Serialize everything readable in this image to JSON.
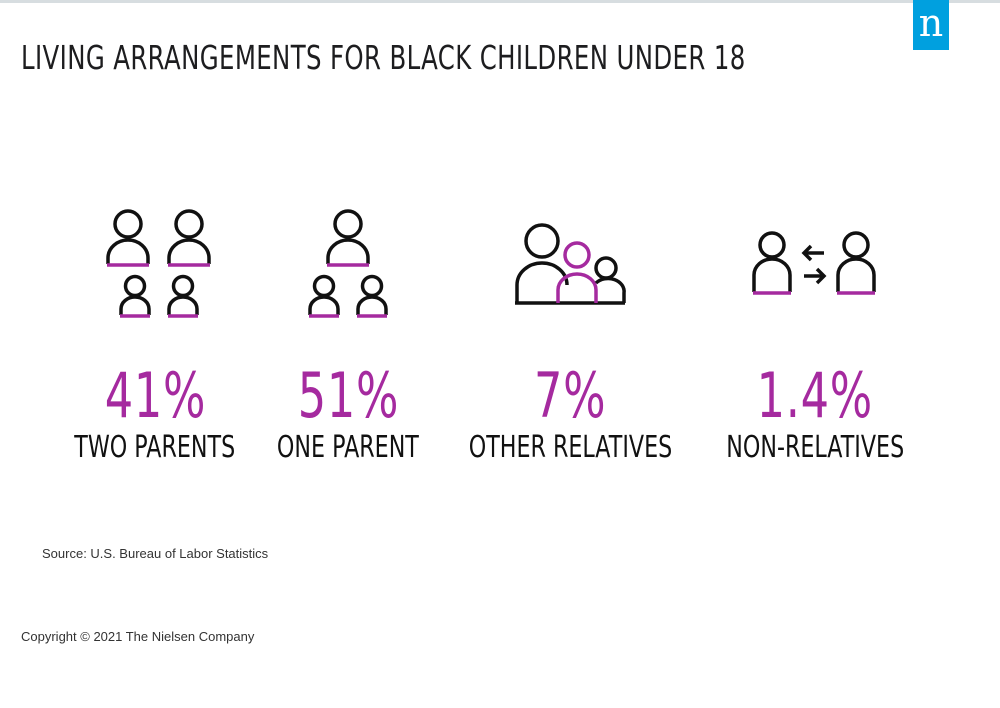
{
  "brand": {
    "logo_letter": "n",
    "logo_color": "#00a0df"
  },
  "title": "LIVING ARRANGEMENTS FOR BLACK CHILDREN UNDER 18",
  "colors": {
    "accent": "#a52a9f",
    "ink": "#111111"
  },
  "stats": [
    {
      "value_label": "41%",
      "label": "TWO PARENTS",
      "icon": "two-parents-icon"
    },
    {
      "value_label": "51%",
      "label": "ONE PARENT",
      "icon": "one-parent-icon"
    },
    {
      "value_label": "7%",
      "label": "OTHER RELATIVES",
      "icon": "other-relatives-icon"
    },
    {
      "value_label": "1.4%",
      "label": "NON-RELATIVES",
      "icon": "non-relatives-icon"
    }
  ],
  "chart_data": {
    "type": "table",
    "title": "LIVING ARRANGEMENTS FOR BLACK CHILDREN UNDER 18",
    "categories": [
      "TWO PARENTS",
      "ONE PARENT",
      "OTHER RELATIVES",
      "NON-RELATIVES"
    ],
    "values": [
      41,
      51,
      7,
      1.4
    ],
    "unit": "%"
  },
  "source": "Source: U.S. Bureau of Labor Statistics",
  "copyright": "Copyright © 2021 The Nielsen Company"
}
